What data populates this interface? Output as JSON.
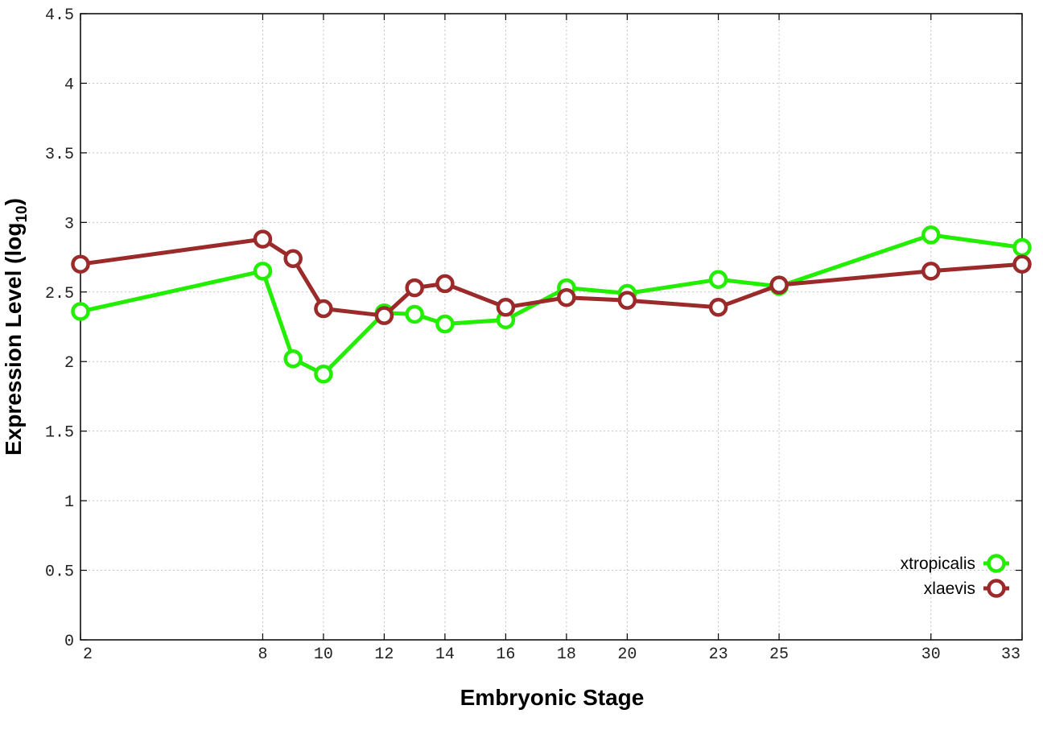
{
  "chart_data": {
    "type": "line",
    "title": "",
    "xlabel": "Embryonic Stage",
    "ylabel": {
      "main": "Expression Level (log",
      "sub": "10",
      "close": ")"
    },
    "x": [
      2,
      8,
      9,
      10,
      12,
      13,
      14,
      16,
      18,
      20,
      23,
      25,
      30,
      33
    ],
    "xticks": [
      "2",
      "8",
      "10",
      "12",
      "14",
      "16",
      "18",
      "20",
      "23",
      "25",
      "30",
      "33"
    ],
    "yticks": [
      "0",
      "0.5",
      "1",
      "1.5",
      "2",
      "2.5",
      "3",
      "3.5",
      "4",
      "4.5"
    ],
    "xlim": [
      2,
      33
    ],
    "ylim": [
      0,
      4.5
    ],
    "grid": true,
    "legend_position": "bottom-right",
    "series": [
      {
        "name": "xtropicalis",
        "color": "#22ee00",
        "values": [
          2.36,
          2.65,
          2.02,
          1.91,
          2.35,
          2.34,
          2.27,
          2.3,
          2.53,
          2.49,
          2.59,
          2.54,
          2.91,
          2.82
        ]
      },
      {
        "name": "xlaevis",
        "color": "#9b2a2a",
        "values": [
          2.7,
          2.88,
          2.74,
          2.38,
          2.33,
          2.53,
          2.56,
          2.39,
          2.46,
          2.44,
          2.39,
          2.55,
          2.65,
          2.7
        ]
      }
    ]
  }
}
